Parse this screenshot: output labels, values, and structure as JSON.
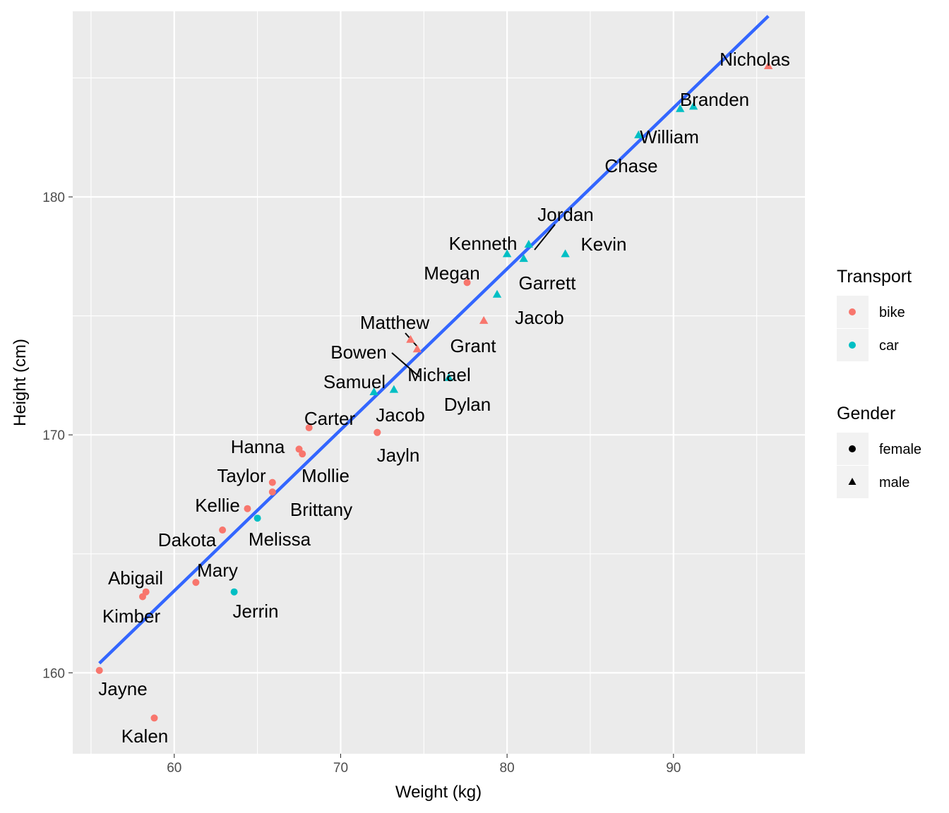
{
  "chart_data": {
    "type": "scatter",
    "title": "",
    "xlabel": "Weight (kg)",
    "ylabel": "Height (cm)",
    "xlim": [
      53.9,
      97.9
    ],
    "ylim": [
      156.6,
      187.8
    ],
    "x_ticks": [
      60,
      70,
      80,
      90
    ],
    "y_ticks": [
      160,
      170,
      180
    ],
    "grid": true,
    "legend_position": "right",
    "legends": [
      {
        "title": "Transport",
        "items": [
          {
            "label": "bike",
            "color": "#F8766D",
            "shape": "circle"
          },
          {
            "label": "car",
            "color": "#00BFC4",
            "shape": "circle"
          }
        ]
      },
      {
        "title": "Gender",
        "items": [
          {
            "label": "female",
            "color": "#000000",
            "shape": "circle"
          },
          {
            "label": "male",
            "color": "#000000",
            "shape": "triangle"
          }
        ]
      }
    ],
    "colors": {
      "bike": "#F8766D",
      "car": "#00BFC4",
      "fit": "#3366FF"
    },
    "fit_line": {
      "x": [
        55.5,
        95.7
      ],
      "y": [
        160.4,
        187.6
      ]
    },
    "points": [
      {
        "name": "Nicholas",
        "weight": 95.7,
        "height": 185.5,
        "transport": "bike",
        "gender": "male"
      },
      {
        "name": "Branden",
        "weight": 91.2,
        "height": 183.8,
        "transport": "car",
        "gender": "male"
      },
      {
        "name": "William",
        "weight": 87.9,
        "height": 182.6,
        "transport": "car",
        "gender": "male"
      },
      {
        "name": "Chase",
        "weight": 90.4,
        "height": 183.7,
        "transport": "car",
        "gender": "male"
      },
      {
        "name": "Jordan",
        "weight": 81.3,
        "height": 178.0,
        "transport": "car",
        "gender": "male"
      },
      {
        "name": "Kenneth",
        "weight": 80.0,
        "height": 177.6,
        "transport": "car",
        "gender": "male"
      },
      {
        "name": "Kevin",
        "weight": 83.5,
        "height": 177.6,
        "transport": "car",
        "gender": "male"
      },
      {
        "name": "Garrett",
        "weight": 81.0,
        "height": 177.4,
        "transport": "car",
        "gender": "male"
      },
      {
        "name": "Megan",
        "weight": 77.6,
        "height": 176.4,
        "transport": "bike",
        "gender": "female"
      },
      {
        "name": "Jacob",
        "weight": 79.4,
        "height": 175.9,
        "transport": "car",
        "gender": "male"
      },
      {
        "name": "Grant",
        "weight": 78.6,
        "height": 174.8,
        "transport": "bike",
        "gender": "male"
      },
      {
        "name": "Matthew",
        "weight": 74.2,
        "height": 174.0,
        "transport": "bike",
        "gender": "male"
      },
      {
        "name": "Michael",
        "weight": 74.6,
        "height": 173.6,
        "transport": "bike",
        "gender": "male"
      },
      {
        "name": "Bowen",
        "weight": 73.2,
        "height": 171.9,
        "transport": "car",
        "gender": "male"
      },
      {
        "name": "Dylan",
        "weight": 76.5,
        "height": 172.4,
        "transport": "car",
        "gender": "male"
      },
      {
        "name": "Samuel",
        "weight": 72.0,
        "height": 171.8,
        "transport": "car",
        "gender": "male"
      },
      {
        "name": "Jacob",
        "weight": 72.2,
        "height": 170.1,
        "transport": "bike",
        "gender": "female"
      },
      {
        "name": "Carter",
        "weight": 68.1,
        "height": 170.3,
        "transport": "bike",
        "gender": "female"
      },
      {
        "name": "Jayln",
        "weight": 72.2,
        "height": 170.1,
        "transport": "bike",
        "gender": "female"
      },
      {
        "name": "Hanna",
        "weight": 67.5,
        "height": 169.4,
        "transport": "bike",
        "gender": "female"
      },
      {
        "name": "Mollie",
        "weight": 67.7,
        "height": 169.2,
        "transport": "bike",
        "gender": "female"
      },
      {
        "name": "Taylor",
        "weight": 65.9,
        "height": 168.0,
        "transport": "bike",
        "gender": "female"
      },
      {
        "name": "Brittany",
        "weight": 65.9,
        "height": 167.6,
        "transport": "bike",
        "gender": "female"
      },
      {
        "name": "Kellie",
        "weight": 64.4,
        "height": 166.9,
        "transport": "bike",
        "gender": "female"
      },
      {
        "name": "Melissa",
        "weight": 65.0,
        "height": 166.5,
        "transport": "car",
        "gender": "female"
      },
      {
        "name": "Dakota",
        "weight": 62.9,
        "height": 166.0,
        "transport": "bike",
        "gender": "female"
      },
      {
        "name": "Mary",
        "weight": 61.3,
        "height": 163.8,
        "transport": "bike",
        "gender": "female"
      },
      {
        "name": "Jerrin",
        "weight": 63.6,
        "height": 163.4,
        "transport": "car",
        "gender": "female"
      },
      {
        "name": "Abigail",
        "weight": 58.3,
        "height": 163.4,
        "transport": "bike",
        "gender": "female"
      },
      {
        "name": "Kimber",
        "weight": 58.1,
        "height": 163.2,
        "transport": "bike",
        "gender": "female"
      },
      {
        "name": "Jayne",
        "weight": 55.5,
        "height": 160.1,
        "transport": "bike",
        "gender": "female"
      },
      {
        "name": "Kalen",
        "weight": 58.8,
        "height": 158.1,
        "transport": "bike",
        "gender": "female"
      }
    ]
  }
}
